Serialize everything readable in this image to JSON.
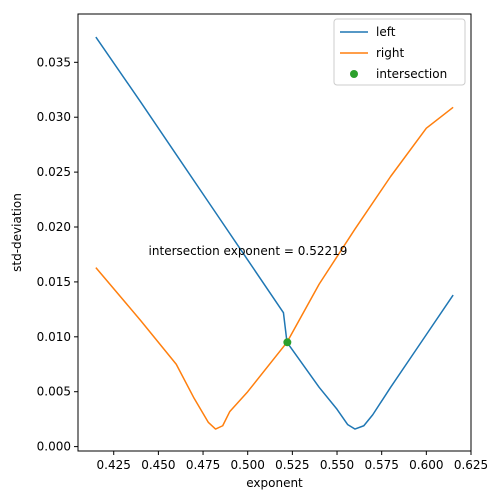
{
  "chart_data": {
    "type": "line",
    "title": "",
    "xlabel": "exponent",
    "ylabel": "std-deviation",
    "xlim": [
      0.405,
      0.625
    ],
    "ylim": [
      -0.0004,
      0.0394
    ],
    "xticks": [
      0.425,
      0.45,
      0.475,
      0.5,
      0.525,
      0.55,
      0.575,
      0.6,
      0.625
    ],
    "xtick_labels": [
      "0.425",
      "0.450",
      "0.475",
      "0.500",
      "0.525",
      "0.550",
      "0.575",
      "0.600",
      "0.625"
    ],
    "yticks": [
      0.0,
      0.005,
      0.01,
      0.015,
      0.02,
      0.025,
      0.03,
      0.035
    ],
    "ytick_labels": [
      "0.000",
      "0.005",
      "0.010",
      "0.015",
      "0.020",
      "0.025",
      "0.030",
      "0.035"
    ],
    "legend_position": "top-right",
    "grid": false,
    "series": [
      {
        "name": "left",
        "kind": "line",
        "color": "#1f77b4",
        "x": [
          0.415,
          0.44,
          0.46,
          0.48,
          0.5,
          0.52,
          0.522,
          0.54,
          0.55,
          0.556,
          0.56,
          0.565,
          0.57,
          0.58,
          0.6,
          0.615
        ],
        "y": [
          0.0373,
          0.0314,
          0.0266,
          0.0218,
          0.017,
          0.0122,
          0.0095,
          0.0054,
          0.0034,
          0.002,
          0.0016,
          0.0019,
          0.0029,
          0.0054,
          0.0102,
          0.0138
        ]
      },
      {
        "name": "right",
        "kind": "line",
        "color": "#ff7f0e",
        "x": [
          0.415,
          0.44,
          0.46,
          0.47,
          0.478,
          0.482,
          0.486,
          0.49,
          0.5,
          0.522,
          0.54,
          0.56,
          0.58,
          0.6,
          0.615
        ],
        "y": [
          0.0163,
          0.0115,
          0.0075,
          0.0044,
          0.0022,
          0.0016,
          0.0019,
          0.0032,
          0.005,
          0.0095,
          0.0148,
          0.0198,
          0.0246,
          0.029,
          0.0309
        ]
      },
      {
        "name": "intersection",
        "kind": "point",
        "color": "#2ca02c",
        "x": [
          0.52219
        ],
        "y": [
          0.0095
        ]
      }
    ],
    "annotations": [
      {
        "text": "intersection exponent = 0.52219",
        "x": 0.4445,
        "y": 0.0178
      }
    ]
  }
}
